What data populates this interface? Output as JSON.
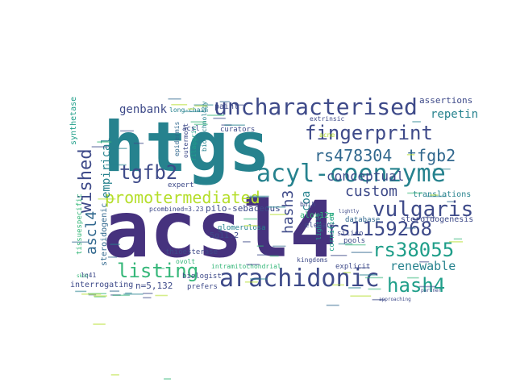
{
  "palette": {
    "deep_purple": "#46327e",
    "indigo": "#3e4a89",
    "blue": "#31688e",
    "teal": "#26828e",
    "green_teal": "#1f9e89",
    "green": "#35b779",
    "lime": "#6ece58",
    "yellow_green": "#b5de2b",
    "yellow": "#e0dd17"
  },
  "words": [
    "acsl4",
    "htgs",
    "uncharacterised",
    "acyl-coenzyme",
    "fingerprint",
    "arachidonic",
    "promotermediated",
    "vulgaris",
    "rs478304",
    "tfgb2",
    "tgfb2",
    "rs1159268",
    "hash3",
    "hash4",
    "rs38055",
    "listing",
    "wished",
    "ascl4",
    "conceptual",
    "genbank",
    "empirical",
    "custom",
    "renewable",
    "repetin",
    "coa",
    "alox12e",
    "steroidogenesis",
    "translations",
    "assertions",
    "synthetase",
    "curators",
    "expert",
    "paint",
    "filaggrin",
    "acsl",
    "epidermis",
    "outermost",
    "biotechnology",
    "long-chain",
    "extrinsic",
    "bhlh",
    "database",
    "elegans",
    "cornified",
    "silico",
    "pools",
    "explicit",
    "kingdoms",
    "intramitochondrial",
    "pilo-sebaceous",
    "pcombined=3.23",
    "5q11.2",
    "steroidogenic",
    "interrogating",
    "n=5,132",
    "prefers",
    "biologist",
    "steroid",
    "tissuespecific",
    "thioesterase",
    "glomerulosa",
    "1q41",
    "acne",
    "approaching",
    "partner",
    "lightly",
    "ovolt",
    "skin"
  ]
}
